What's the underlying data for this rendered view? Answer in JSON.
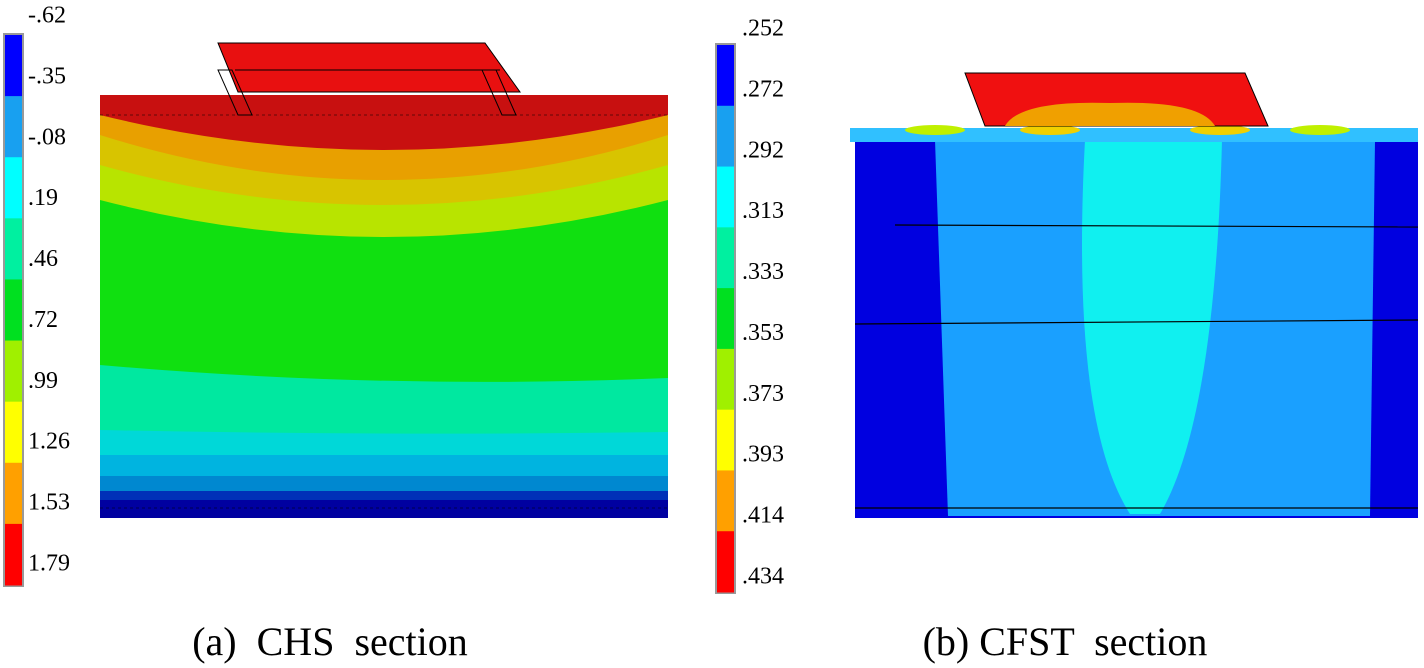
{
  "panels": [
    {
      "legend": [
        "-.62",
        "-.35",
        "-.08",
        ".19",
        ".46",
        ".72",
        ".99",
        "1.26",
        "1.53",
        "1.79"
      ],
      "caption": "(a)  CHS  section"
    },
    {
      "legend": [
        ".252",
        ".272",
        ".292",
        ".313",
        ".333",
        ".353",
        ".373",
        ".393",
        ".414",
        ".434"
      ],
      "caption": "(b) CFST  section"
    }
  ]
}
